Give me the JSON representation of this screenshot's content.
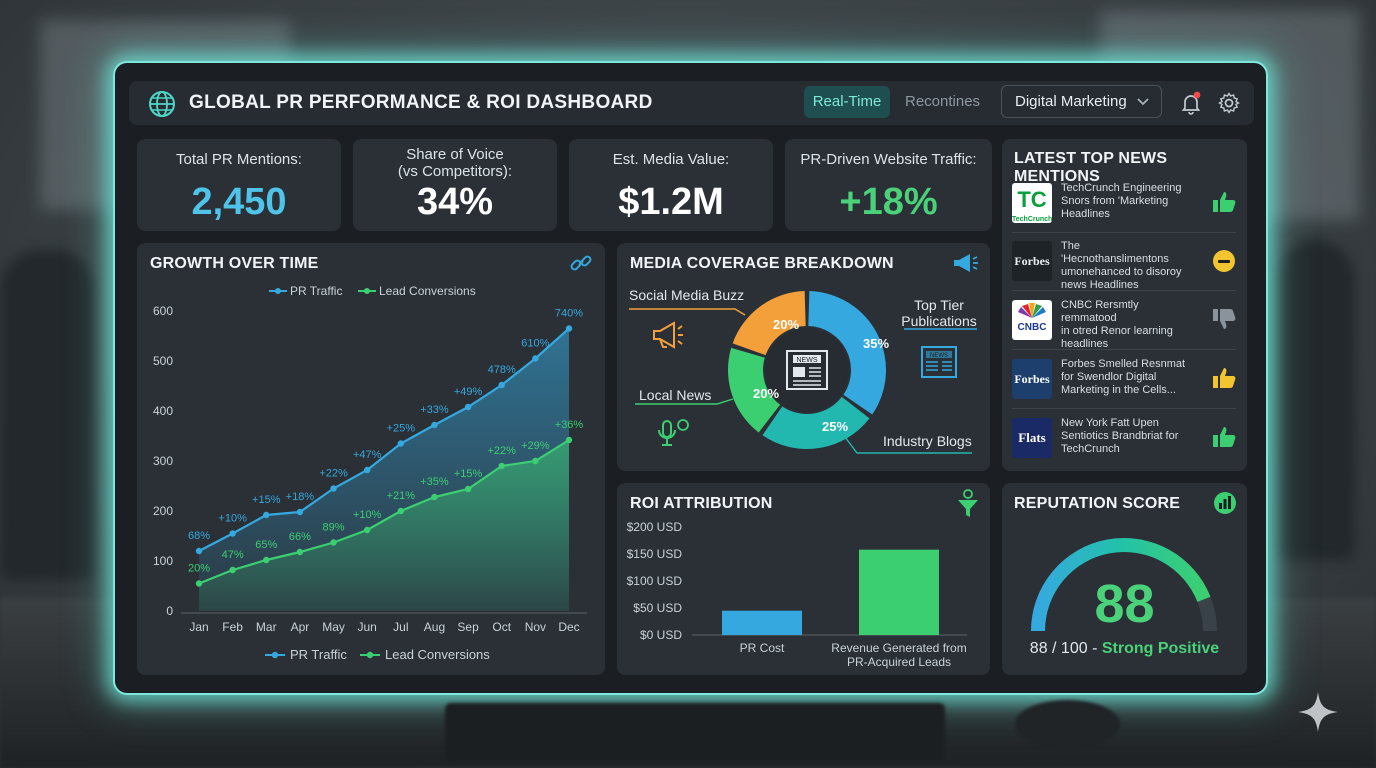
{
  "header": {
    "title": "GLOBAL PR PERFORMANCE & ROI DASHBOARD",
    "tabs": [
      {
        "label": "Real-Time",
        "active": true
      },
      {
        "label": "Recontines",
        "active": false
      }
    ],
    "dropdown": "Digital Marketing",
    "icons": [
      "globe-icon",
      "bell-icon",
      "gear-icon"
    ]
  },
  "kpis": [
    {
      "label": "Total PR Mentions:",
      "value": "2,450",
      "color": "#4fc3e8"
    },
    {
      "label_line1": "Share of Voice",
      "label_line2": "(vs Competitors):",
      "value": "34%",
      "color": "#ffffff"
    },
    {
      "label": "Est. Media Value:",
      "value": "$1.2M",
      "color": "#ffffff"
    },
    {
      "label": "PR-Driven Website Traffic:",
      "value": "+18%",
      "color": "#4ad179"
    }
  ],
  "growth": {
    "title": "GROWTH OVER TIME",
    "legend": [
      "PR Traffic",
      "Lead Conversions"
    ]
  },
  "chart_data": {
    "type": "area",
    "categories": [
      "Jan",
      "Feb",
      "Mar",
      "Apr",
      "May",
      "Jun",
      "Jul",
      "Aug",
      "Sep",
      "Oct",
      "Nov",
      "Dec"
    ],
    "ylim": [
      0,
      600
    ],
    "yticks": [
      0,
      100,
      200,
      300,
      400,
      500,
      600
    ],
    "series": [
      {
        "name": "PR Traffic",
        "color": "#35a9df",
        "values": [
          120,
          155,
          192,
          198,
          245,
          282,
          335,
          372,
          408,
          452,
          505,
          565
        ],
        "labels": [
          "68%",
          "+10%",
          "+15%",
          "+18%",
          "+22%",
          "+47%",
          "+25%",
          "+33%",
          "+49%",
          "478%",
          "610%",
          "740%"
        ]
      },
      {
        "name": "Lead Conversions",
        "color": "#3ccf71",
        "values": [
          55,
          82,
          102,
          118,
          137,
          162,
          200,
          228,
          244,
          290,
          300,
          342
        ],
        "labels": [
          "20%",
          "47%",
          "65%",
          "66%",
          "89%",
          "+10%",
          "+21%",
          "+35%",
          "+15%",
          "+22%",
          "+29%",
          "+36%"
        ]
      }
    ]
  },
  "media": {
    "title": "MEDIA COVERAGE BREAKDOWN",
    "chart_data": {
      "type": "pie",
      "slices": [
        {
          "label": "Top Tier Publications",
          "value": 35,
          "color": "#35a9df"
        },
        {
          "label": "Industry Blogs",
          "value": 25,
          "color": "#22b8b0"
        },
        {
          "label": "Local News",
          "value": 20,
          "color": "#3ccf71"
        },
        {
          "label": "Social Media Buzz",
          "value": 20,
          "color": "#f4a03a"
        }
      ]
    },
    "labels": {
      "social": "Social Media Buzz",
      "top_tier_1": "Top Tier",
      "top_tier_2": "Publications",
      "local": "Local News",
      "industry": "Industry Blogs"
    },
    "pct": {
      "p35": "35%",
      "p25": "25%",
      "p20a": "20%",
      "p20b": "20%"
    }
  },
  "roi": {
    "title": "ROI ATTRIBUTION",
    "chart_data": {
      "type": "bar",
      "categories": [
        "PR Cost",
        "Revenue Generated from PR-Acquired Leads"
      ],
      "values": [
        45,
        158
      ],
      "ylim": [
        0,
        200
      ],
      "yticks": [
        "$0 USD",
        "$50 USD",
        "$100 USD",
        "$150 USD",
        "$200 USD"
      ],
      "colors": [
        "#35a9df",
        "#3ccf71"
      ]
    },
    "cat1": "PR Cost",
    "cat2_line1": "Revenue Generated from",
    "cat2_line2": "PR-Acquired Leads"
  },
  "news": {
    "title": "LATEST TOP NEWS MENTIONS",
    "items": [
      {
        "logo": "TC",
        "sublogo": "TechCrunch",
        "l1": "TechCrunch Engineering",
        "l2": "Snors from 'Marketing",
        "l3": "Headlines",
        "sentiment": "positive"
      },
      {
        "logo": "Forbes",
        "l1": "The 'Hecnothanslimentons",
        "l2": "umonehanced to disoroy",
        "l3": "news Headlines",
        "sentiment": "neutral"
      },
      {
        "logo": "CNBC",
        "l1": "CNBC Rersmtly remmatood",
        "l2": "in otred Renor learning",
        "l3": "headlines",
        "sentiment": "negative"
      },
      {
        "logo": "Forbes",
        "l1": "Forbes Smelled Resnmat",
        "l2": "for Swendlor Digital",
        "l3": "Marketing in the Cells...",
        "sentiment": "positive"
      },
      {
        "logo": "Flats",
        "l1": "New York Fatt Upen",
        "l2": "Sentiotics Brandbriat for",
        "l3": "TechCrunch",
        "sentiment": "positive"
      }
    ]
  },
  "reputation": {
    "title": "REPUTATION SCORE",
    "score": "88",
    "score_value": 88,
    "max": 100,
    "line_prefix": "88 / 100 - ",
    "line_status": "Strong Positive"
  }
}
